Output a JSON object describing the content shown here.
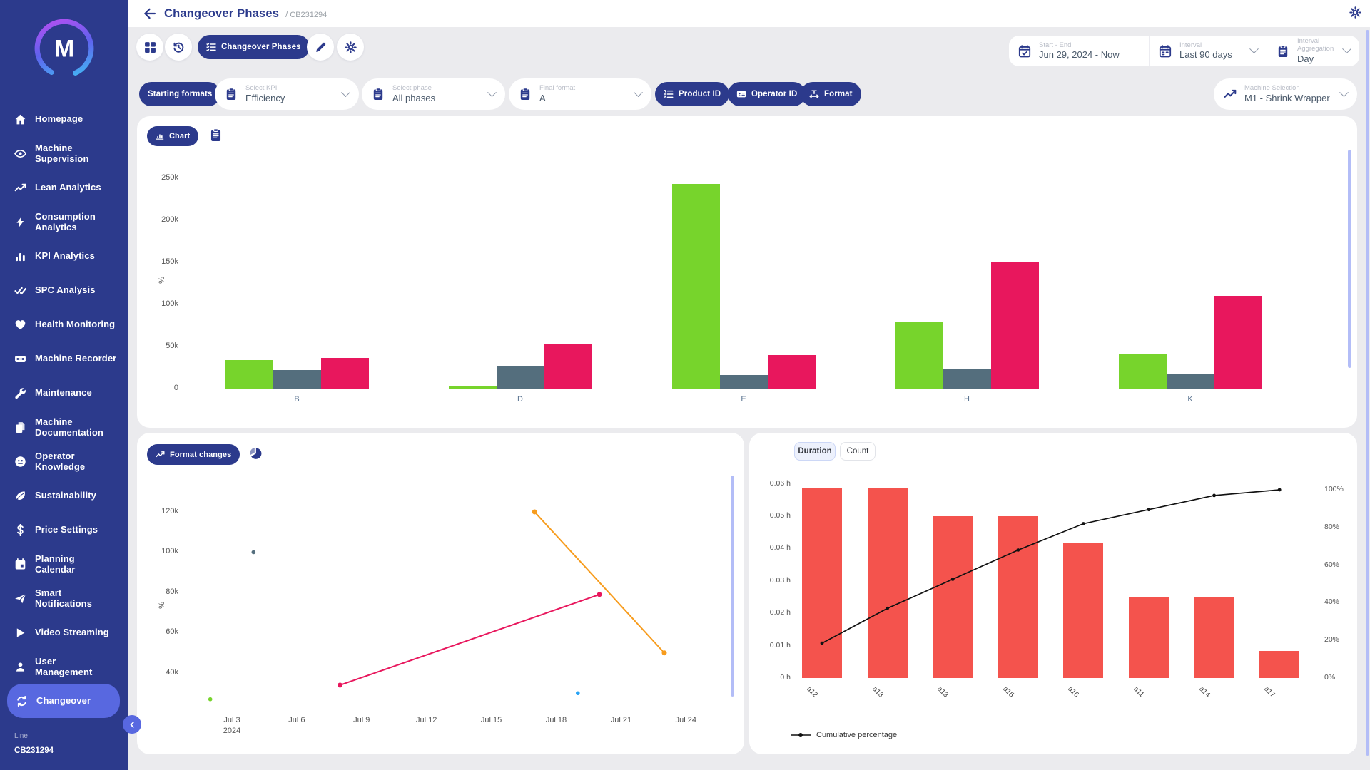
{
  "header": {
    "title": "Changeover Phases",
    "breadcrumb": "/ CB231294"
  },
  "toolbar": {
    "changeover_phases": "Changeover Phases"
  },
  "daterange": {
    "start_end_label": "Start - End",
    "start_end_value": "Jun 29, 2024 - Now",
    "interval_label": "Interval",
    "interval_value": "Last 90 days",
    "aggregation_label": "Interval Aggregation",
    "aggregation_value": "Day"
  },
  "filters": {
    "starting_formats": "Starting formats",
    "kpi_label": "Select KPI",
    "kpi_value": "Efficiency",
    "phase_label": "Select phase",
    "phase_value": "All phases",
    "final_format_label": "Final format",
    "final_format_value": "A",
    "product_id": "Product ID",
    "operator_id": "Operator ID",
    "format": "Format",
    "machine_label": "Machine Selection",
    "machine_value": "M1 - Shrink Wrapper"
  },
  "sidebar": {
    "items": [
      {
        "label": "Homepage",
        "icon": "home"
      },
      {
        "label": "Machine\nSupervision",
        "icon": "eye"
      },
      {
        "label": "Lean Analytics",
        "icon": "trend"
      },
      {
        "label": "Consumption\nAnalytics",
        "icon": "bolt"
      },
      {
        "label": "KPI Analytics",
        "icon": "kpi-bars"
      },
      {
        "label": "SPC Analysis",
        "icon": "double-check"
      },
      {
        "label": "Health Monitoring",
        "icon": "heart"
      },
      {
        "label": "Machine Recorder",
        "icon": "recorder"
      },
      {
        "label": "Maintenance",
        "icon": "wrench"
      },
      {
        "label": "Machine\nDocumentation",
        "icon": "docs"
      },
      {
        "label": "Operator\nKnowledge",
        "icon": "knowledge"
      },
      {
        "label": "Sustainability",
        "icon": "leaf"
      },
      {
        "label": "Price Settings",
        "icon": "dollar"
      },
      {
        "label": "Planning\nCalendar",
        "icon": "planning"
      },
      {
        "label": "Smart\nNotifications",
        "icon": "send"
      },
      {
        "label": "Video Streaming",
        "icon": "play"
      },
      {
        "label": "User\nManagement",
        "icon": "user"
      },
      {
        "label": "Changeover",
        "icon": "cycle",
        "active": true
      }
    ],
    "footer_label": "Line",
    "footer_value": "CB231294",
    "logo_letter": "M"
  },
  "chart_card": {
    "chart_label": "Chart"
  },
  "format_card": {
    "label": "Format changes"
  },
  "pareto_card": {
    "tab_duration": "Duration",
    "tab_count": "Count",
    "legend": "Cumulative percentage"
  },
  "colors": {
    "navy": "#2c3a8c",
    "active_blue": "#5868e0",
    "green": "#77d42c",
    "slate": "#546e7d",
    "pink": "#e8175d",
    "orange": "#f79c1d",
    "blue": "#27a3f5",
    "red": "#f4534d",
    "lavender": "#b3bdf7",
    "cumulative_line": "#111111"
  },
  "chart_data": [
    {
      "type": "bar",
      "categories": [
        "B",
        "D",
        "E",
        "H",
        "K"
      ],
      "series": [
        {
          "name": "green-series",
          "color": "#77d42c",
          "values": [
            34000,
            3000,
            243000,
            79000,
            41000
          ]
        },
        {
          "name": "slate-series",
          "color": "#546e7d",
          "values": [
            22000,
            26000,
            16000,
            23000,
            18000
          ]
        },
        {
          "name": "pink-series",
          "color": "#e8175d",
          "values": [
            36500,
            53000,
            40000,
            150000,
            110000
          ]
        }
      ],
      "ylabel": "%",
      "yticks": [
        "0",
        "50k",
        "100k",
        "150k",
        "200k",
        "250k"
      ],
      "ytick_values": [
        0,
        50000,
        100000,
        150000,
        200000,
        250000
      ],
      "ylim": [
        0,
        250000
      ],
      "legend": "none",
      "grid": false
    },
    {
      "type": "line",
      "ylabel": "%",
      "yticks": [
        "40k",
        "60k",
        "80k",
        "100k",
        "120k"
      ],
      "ytick_values": [
        40000,
        60000,
        80000,
        100000,
        120000
      ],
      "xticks": [
        "Jul 3\n2024",
        "Jul 6",
        "Jul 9",
        "Jul 12",
        "Jul 15",
        "Jul 18",
        "Jul 21",
        "Jul 24"
      ],
      "xtick_days": [
        3,
        6,
        9,
        12,
        15,
        18,
        21,
        24
      ],
      "series": [
        {
          "name": "green-point",
          "color": "#77d42c",
          "points": [
            {
              "day": 2,
              "value": 27000
            }
          ]
        },
        {
          "name": "slate-point",
          "color": "#546e7d",
          "points": [
            {
              "day": 4,
              "value": 100000
            }
          ]
        },
        {
          "name": "pink-line",
          "color": "#e8175d",
          "points": [
            {
              "day": 8,
              "value": 34000
            },
            {
              "day": 20,
              "value": 79000
            }
          ]
        },
        {
          "name": "orange-line",
          "color": "#f79c1d",
          "points": [
            {
              "day": 17,
              "value": 120000
            },
            {
              "day": 23,
              "value": 50000
            }
          ]
        },
        {
          "name": "blue-point",
          "color": "#27a3f5",
          "points": [
            {
              "day": 19,
              "value": 30000
            }
          ]
        }
      ],
      "grid": false,
      "legend": "none"
    },
    {
      "type": "pareto",
      "categories": [
        "a12",
        "a18",
        "a13",
        "a15",
        "a16",
        "a11",
        "a14",
        "a17"
      ],
      "bars_hours": [
        0.0585,
        0.0585,
        0.05,
        0.05,
        0.0417,
        0.025,
        0.025,
        0.0083
      ],
      "cumulative_pct": [
        18.5,
        37,
        52.5,
        68,
        82,
        89.5,
        97,
        100
      ],
      "yticks_left": [
        "0 h",
        "0.01 h",
        "0.02 h",
        "0.03 h",
        "0.04 h",
        "0.05 h",
        "0.06 h"
      ],
      "ytick_left_values": [
        0,
        0.01,
        0.02,
        0.03,
        0.04,
        0.05,
        0.06
      ],
      "yticks_right": [
        "0%",
        "20%",
        "40%",
        "60%",
        "80%",
        "100%"
      ],
      "ytick_right_values": [
        0,
        20,
        40,
        60,
        80,
        100
      ],
      "bar_color": "#f4534d",
      "line_color": "#111111",
      "legend": "Cumulative percentage",
      "legend_position": "bottom-left"
    }
  ]
}
